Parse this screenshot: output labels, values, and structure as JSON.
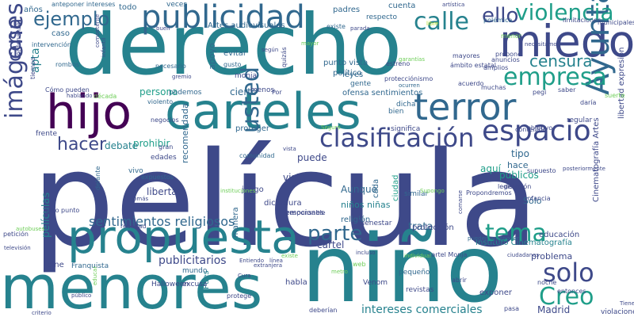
{
  "palette": {
    "dark_purple": "#440154",
    "indigo": "#3e4989",
    "blue": "#31688e",
    "teal": "#26828e",
    "green": "#1f9e89",
    "light_green": "#35b779",
    "lime": "#6ece58",
    "yellow": "#b5de2b"
  },
  "words": [
    "película",
    "niño",
    "derecho",
    "menores",
    "carteles",
    "propuesta",
    "terror",
    "miedo",
    "hijo",
    "publicidad",
    "imágenes",
    "Ayuntamiento",
    "clasificación",
    "usted",
    "espacio",
    "empresa",
    "violencia",
    "censura",
    "calle",
    "tema",
    "solo",
    "Creo",
    "parte",
    "hacer",
    "cosa",
    "ejemplo",
    "ello",
    "sentimientos religiosos",
    "publicitarios",
    "intereses comerciales",
    "películas",
    "apta",
    "prohibir",
    "libertad",
    "recomendada",
    "visto",
    "Aunque",
    "puede",
    "trata",
    "cartel",
    "debate",
    "persona",
    "niños niñas",
    "públicos",
    "hace",
    "aquí",
    "Sólo",
    "tipo",
    "Madrid",
    "libertad expresión",
    "Cinematografía Artes",
    "Instituto Cinematografía",
    "problema",
    "religión",
    "cada",
    "cierto",
    "apoyo",
    "años",
    "caso",
    "todo",
    "padres",
    "cuenta",
    "Artes audiovisuales",
    "proteger",
    "juego",
    "dictadura",
    "cine",
    "Franquista",
    "mundo",
    "Pues",
    "Venom",
    "habla",
    "pequeño",
    "ofensa sentimientos",
    "leyes",
    "punto vista",
    "político",
    "podemos",
    "necesario",
    "evitar",
    "gusto",
    "veces",
    "respecto",
    "existe",
    "polémica",
    "limitaciones",
    "municipales",
    "protección",
    "infancia",
    "similar",
    "responsable",
    "bienestar",
    "educación",
    "regular",
    "contenido",
    "objetivo",
    "ciudad",
    "manera",
    "realidad",
    "excusa",
    "vivo",
    "expuestos",
    "Halloween",
    "delante",
    "Bajo punto",
    "petición",
    "comunidad",
    "vamos",
    "menos",
    "gente",
    "dicha",
    "bien",
    "emociones",
    "cartel Monja",
    "exponer",
    "violaciones",
    "pasa",
    "noche",
    "entonces",
    "revistas",
    "deberían",
    "tiempo",
    "ordenanza",
    "intervención",
    "anteponer intereses",
    "rombos",
    "Cómo pueden",
    "hablando",
    "década",
    "negocios",
    "gran",
    "frente",
    "edades",
    "violento",
    "infantil",
    "monja",
    "quizás",
    "estreno",
    "ámbito estatal",
    "acuerdo",
    "legislación",
    "decir",
    "diga",
    "ciudadanos",
    "supuesto",
    "posteriormente",
    "anuncios",
    "amplios",
    "mayores",
    "muchas",
    "pegi",
    "saber",
    "daría",
    "suerte",
    "propone",
    "menor",
    "artística",
    "libre",
    "protecciónismo",
    "significa",
    "Seguro",
    "Supongo",
    "Propondremos",
    "comarse",
    "abrir",
    "instituciones",
    "vista",
    "Tomás",
    "autobuses",
    "televisión",
    "criterio",
    "público",
    "educar",
    "protege",
    "Entiendo",
    "extranjera",
    "línea",
    "Cura",
    "Por",
    "parada",
    "incluso",
    "web",
    "metro",
    "Tienen",
    "gremio",
    "competente",
    "buen",
    "garantías",
    "necesitamos",
    "ocurren",
    "pueden anteponer",
    "individual",
    "según",
    "mayor",
    "existe",
    "exceso",
    "conveniencia",
    "entretenimiento",
    "audiovisuales",
    "momento"
  ]
}
